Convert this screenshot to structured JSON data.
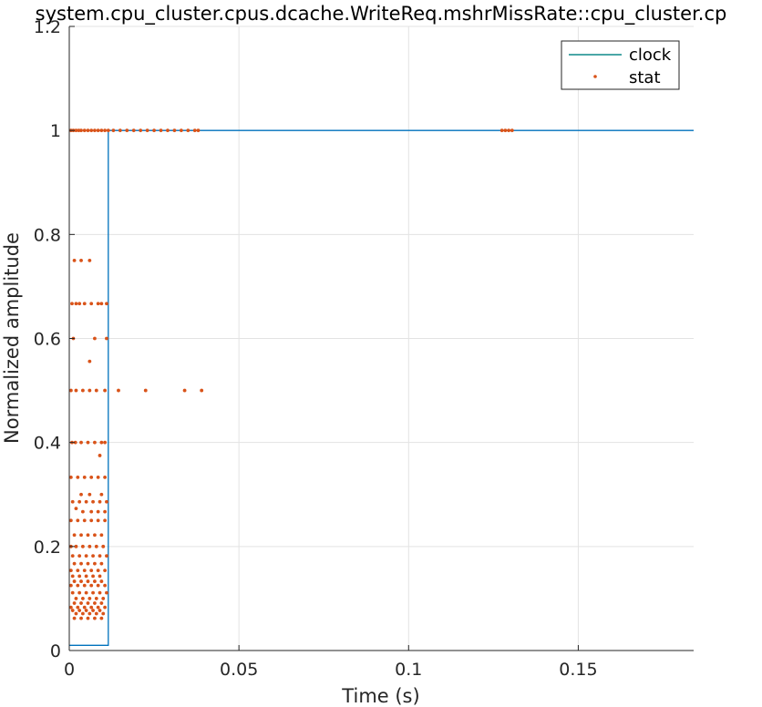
{
  "chart_data": {
    "type": "line",
    "title": "system.cpu_cluster.cpus.dcache.WriteReq.mshrMissRate::cpu_cluster.cp",
    "xlabel": "Time (s)",
    "ylabel": "Normalized amplitude",
    "xlim": [
      0,
      0.184
    ],
    "ylim": [
      0,
      1.2
    ],
    "x_ticks": [
      0,
      0.05,
      0.1,
      0.15
    ],
    "x_tick_labels": [
      "0",
      "0.05",
      "0.1",
      "0.15"
    ],
    "y_ticks": [
      0,
      0.2,
      0.4,
      0.6,
      0.8,
      1,
      1.2
    ],
    "y_tick_labels": [
      "0",
      "0.2",
      "0.4",
      "0.6",
      "0.8",
      "1",
      "1.2"
    ],
    "grid": true,
    "legend_position": "top-right",
    "series": [
      {
        "name": "clock",
        "style": "line",
        "color": "#0072BD",
        "legend_color": "#0E8A8A",
        "x": [
          0,
          0.0115,
          0.0115,
          0.184
        ],
        "y": [
          0.01,
          0.01,
          1,
          1
        ]
      },
      {
        "name": "stat",
        "style": "markers",
        "color": "#D95319",
        "x": [
          0.0005,
          0.0012,
          0.002,
          0.0028,
          0.0035,
          0.0045,
          0.0055,
          0.0065,
          0.0075,
          0.0085,
          0.0095,
          0.0105,
          0.0115,
          0.013,
          0.015,
          0.017,
          0.019,
          0.021,
          0.023,
          0.025,
          0.027,
          0.029,
          0.031,
          0.033,
          0.035,
          0.037,
          0.038,
          0.1275,
          0.1285,
          0.1295,
          0.1305,
          0.0015,
          0.0035,
          0.006,
          0.0008,
          0.002,
          0.003,
          0.0045,
          0.0065,
          0.0085,
          0.0095,
          0.011,
          0.0012,
          0.0075,
          0.011,
          0.006,
          0.0005,
          0.002,
          0.004,
          0.006,
          0.008,
          0.0105,
          0.0145,
          0.0225,
          0.034,
          0.039,
          0.0008,
          0.0018,
          0.0035,
          0.0055,
          0.0075,
          0.0095,
          0.0105,
          0.009,
          0.0005,
          0.0025,
          0.0045,
          0.0065,
          0.0085,
          0.0105,
          0.0035,
          0.006,
          0.0095,
          0.001,
          0.003,
          0.005,
          0.007,
          0.009,
          0.011,
          0.002,
          0.004,
          0.0065,
          0.0085,
          0.0105,
          0.0005,
          0.0025,
          0.0045,
          0.0065,
          0.0085,
          0.0105,
          0.0015,
          0.0035,
          0.0055,
          0.0075,
          0.0095,
          0.0005,
          0.002,
          0.004,
          0.006,
          0.008,
          0.01,
          0.001,
          0.003,
          0.005,
          0.007,
          0.009,
          0.011,
          0.0015,
          0.0035,
          0.0055,
          0.0075,
          0.0095,
          0.0005,
          0.0025,
          0.0045,
          0.0065,
          0.0085,
          0.0105,
          0.001,
          0.003,
          0.005,
          0.007,
          0.009,
          0.0015,
          0.0035,
          0.0055,
          0.0075,
          0.0095,
          0.0005,
          0.0025,
          0.0045,
          0.0065,
          0.0085,
          0.0105,
          0.001,
          0.003,
          0.005,
          0.007,
          0.009,
          0.011,
          0.002,
          0.004,
          0.006,
          0.008,
          0.01,
          0.0015,
          0.0035,
          0.0055,
          0.0075,
          0.0095,
          0.0005,
          0.0025,
          0.0045,
          0.0065,
          0.0085,
          0.0105,
          0.001,
          0.003,
          0.005,
          0.007,
          0.009,
          0.002,
          0.004,
          0.006,
          0.008,
          0.01,
          0.0015,
          0.0035,
          0.0055,
          0.0075,
          0.0095
        ],
        "y": [
          1,
          1,
          1,
          1,
          1,
          1,
          1,
          1,
          1,
          1,
          1,
          1,
          1,
          1,
          1,
          1,
          1,
          1,
          1,
          1,
          1,
          1,
          1,
          1,
          1,
          1,
          1,
          1,
          1,
          1,
          1,
          0.75,
          0.75,
          0.75,
          0.667,
          0.667,
          0.667,
          0.667,
          0.667,
          0.667,
          0.667,
          0.667,
          0.6,
          0.6,
          0.6,
          0.556,
          0.5,
          0.5,
          0.5,
          0.5,
          0.5,
          0.5,
          0.5,
          0.5,
          0.5,
          0.5,
          0.4,
          0.4,
          0.4,
          0.4,
          0.4,
          0.4,
          0.4,
          0.375,
          0.333,
          0.333,
          0.333,
          0.333,
          0.333,
          0.333,
          0.3,
          0.3,
          0.3,
          0.286,
          0.286,
          0.286,
          0.286,
          0.286,
          0.286,
          0.273,
          0.267,
          0.267,
          0.267,
          0.267,
          0.25,
          0.25,
          0.25,
          0.25,
          0.25,
          0.25,
          0.222,
          0.222,
          0.222,
          0.222,
          0.222,
          0.2,
          0.2,
          0.2,
          0.2,
          0.2,
          0.2,
          0.182,
          0.182,
          0.182,
          0.182,
          0.182,
          0.182,
          0.167,
          0.167,
          0.167,
          0.167,
          0.167,
          0.154,
          0.154,
          0.154,
          0.154,
          0.154,
          0.154,
          0.143,
          0.143,
          0.143,
          0.143,
          0.143,
          0.133,
          0.133,
          0.133,
          0.133,
          0.133,
          0.125,
          0.125,
          0.125,
          0.125,
          0.125,
          0.125,
          0.111,
          0.111,
          0.111,
          0.111,
          0.111,
          0.111,
          0.1,
          0.1,
          0.1,
          0.1,
          0.1,
          0.091,
          0.091,
          0.091,
          0.091,
          0.091,
          0.083,
          0.083,
          0.083,
          0.083,
          0.083,
          0.083,
          0.077,
          0.077,
          0.077,
          0.077,
          0.077,
          0.071,
          0.071,
          0.071,
          0.071,
          0.071,
          0.062,
          0.062,
          0.062,
          0.062,
          0.062
        ]
      }
    ]
  }
}
